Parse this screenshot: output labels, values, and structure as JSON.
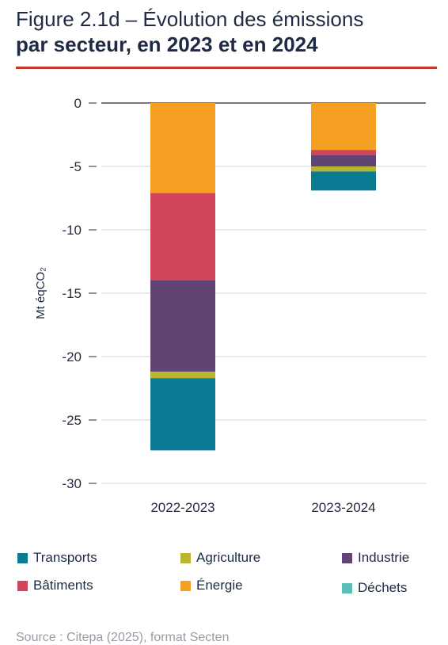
{
  "title": {
    "line1": "Figure 2.1d – Évolution des émissions",
    "line2": "par secteur, en 2023 et en 2024"
  },
  "chart_data": {
    "type": "bar",
    "stacked": true,
    "categories": [
      "2022-2023",
      "2023-2024"
    ],
    "ylabel": "Mt éqCO₂",
    "ylim": [
      -30,
      0
    ],
    "yticks": [
      0,
      -5,
      -10,
      -15,
      -20,
      -25,
      -30
    ],
    "grid": true,
    "legend_position": "bottom",
    "series": [
      {
        "name": "Énergie",
        "color": "#f5a023",
        "values": [
          -7.1,
          -3.7
        ]
      },
      {
        "name": "Bâtiments",
        "color": "#d04557",
        "values": [
          -6.9,
          -0.4
        ]
      },
      {
        "name": "Industrie",
        "color": "#624474",
        "values": [
          -7.2,
          -0.9
        ]
      },
      {
        "name": "Agriculture",
        "color": "#b8b52f",
        "values": [
          -0.5,
          -0.4
        ]
      },
      {
        "name": "Transports",
        "color": "#0b7a93",
        "values": [
          -5.7,
          -1.5
        ]
      },
      {
        "name": "Déchets",
        "color": "#5bbfb5",
        "values": [
          0,
          0
        ]
      }
    ]
  },
  "legend": [
    {
      "label": "Transports",
      "color": "#0b7a93"
    },
    {
      "label": "Agriculture",
      "color": "#b8b52f"
    },
    {
      "label": "Industrie",
      "color": "#624474"
    },
    {
      "label": "Bâtiments",
      "color": "#d04557"
    },
    {
      "label": "Énergie",
      "color": "#f5a023"
    },
    {
      "label": "Déchets",
      "color": "#5bbfb5"
    }
  ],
  "source": "Source : Citepa (2025), format Secten"
}
